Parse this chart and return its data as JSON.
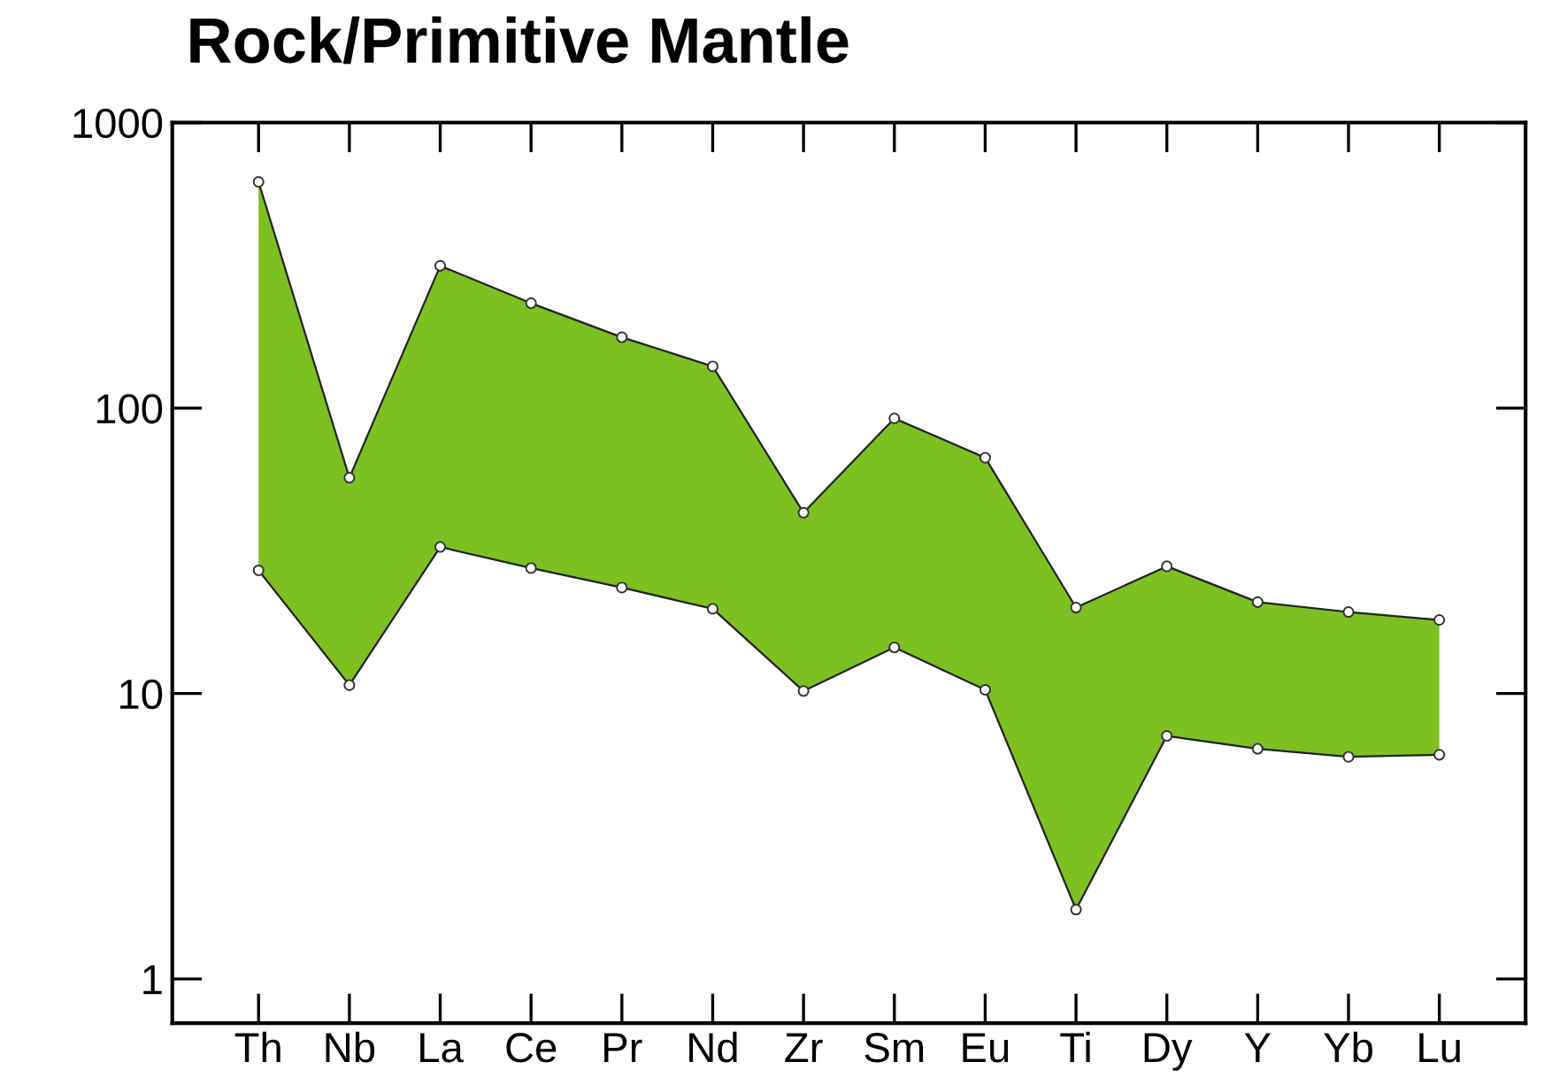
{
  "chart_data": {
    "type": "area",
    "title": "Rock/Primitive Mantle",
    "categories": [
      "Th",
      "Nb",
      "La",
      "Ce",
      "Pr",
      "Nd",
      "Zr",
      "Sm",
      "Eu",
      "Ti",
      "Dy",
      "Y",
      "Yb",
      "Lu"
    ],
    "series": [
      {
        "color": "#7dc022",
        "values": [
          620,
          57,
          315,
          233,
          177,
          140,
          43,
          92,
          67,
          20,
          27.9,
          20.9,
          19.3,
          18.1
        ]
      },
      {
        "type": "line",
        "color": "#222222",
        "values": [
          27,
          10.7,
          32.6,
          27.5,
          23.5,
          19.8,
          10.2,
          14.5,
          10.3,
          1.75,
          7.1,
          6.4,
          6.0,
          6.1
        ]
      }
    ],
    "log": "y",
    "ylim": [
      0.7,
      1000
    ],
    "yticks": [
      1,
      10,
      100,
      1000
    ],
    "grid": false,
    "legend": false,
    "marker": "circle",
    "line_style": "solid"
  }
}
